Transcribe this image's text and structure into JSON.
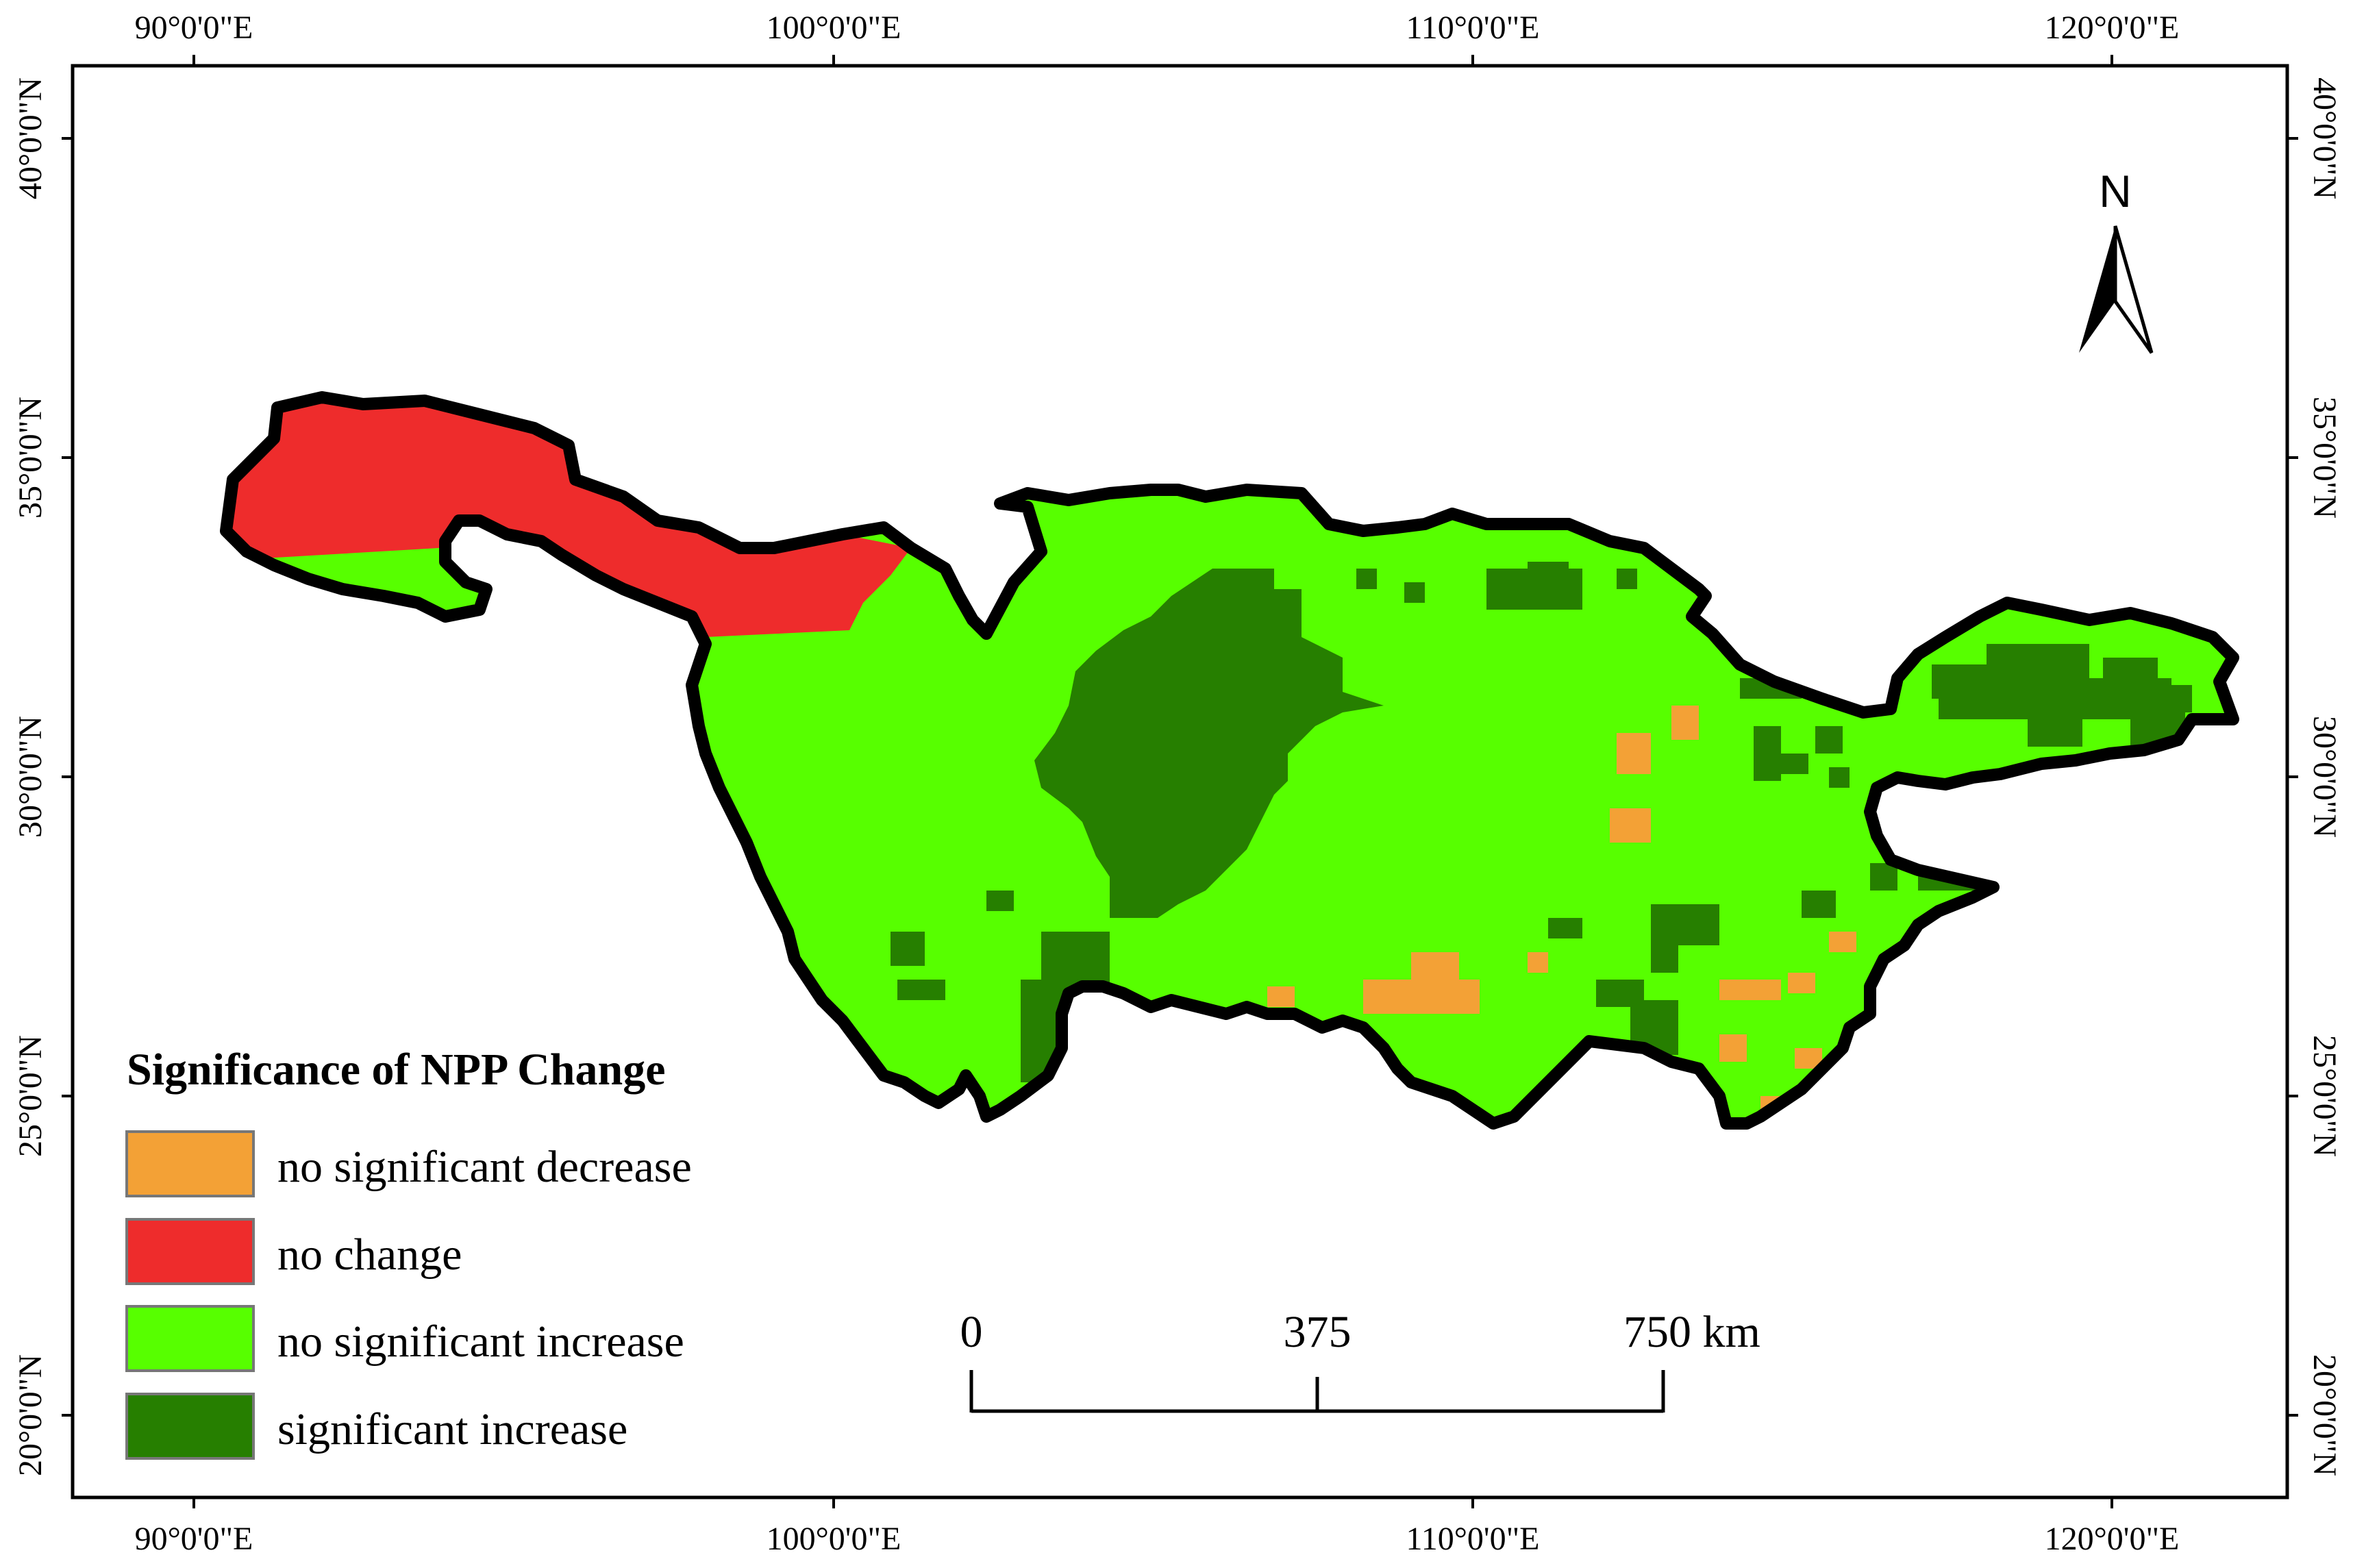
{
  "colors": {
    "no_significant_decrease": "#F3A136",
    "no_change": "#EE2C2C",
    "no_significant_increase": "#57FF00",
    "significant_increase": "#267F00",
    "boundary": "#000000"
  },
  "axes": {
    "top_x_ticks": [
      "90°0'0\"E",
      "100°0'0\"E",
      "110°0'0\"E",
      "120°0'0\"E"
    ],
    "bottom_x_ticks": [
      "90°0'0\"E",
      "100°0'0\"E",
      "110°0'0\"E",
      "120°0'0\"E"
    ],
    "left_y_ticks": [
      "40°0'0\"N",
      "35°0'0\"N",
      "30°0'0\"N",
      "25°0'0\"N",
      "20°0'0\"N"
    ],
    "right_y_ticks": [
      "40°0'0\"N",
      "35°0'0\"N",
      "30°0'0\"N",
      "25°0'0\"N",
      "20°0'0\"N"
    ]
  },
  "legend": {
    "title": "Significance of NPP Change",
    "items": [
      {
        "label": "no significant decrease",
        "color": "#F3A136"
      },
      {
        "label": "no change",
        "color": "#EE2C2C"
      },
      {
        "label": "no significant increase",
        "color": "#57FF00"
      },
      {
        "label": "significant increase",
        "color": "#267F00"
      }
    ]
  },
  "scale_bar": {
    "labels": [
      "0",
      "375",
      "750 km"
    ]
  },
  "north_arrow": {
    "label": "N",
    "icon": "north-arrow-icon"
  }
}
